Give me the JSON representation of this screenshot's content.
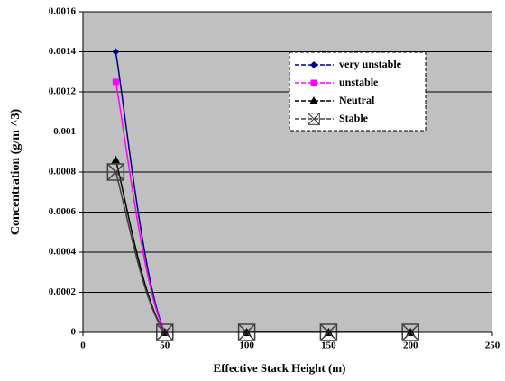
{
  "chart_data": {
    "type": "line",
    "smooth": true,
    "x_label": "Effective Stack Height (m)",
    "y_label": "Concentration (g/m ^3)",
    "x": [
      20,
      50,
      100,
      150,
      200
    ],
    "series": [
      {
        "name": "very unstable",
        "color": "#000080",
        "marker": "diamond",
        "values": [
          0.0014,
          0,
          0,
          0,
          0
        ]
      },
      {
        "name": "unstable",
        "color": "#ff00ff",
        "marker": "square",
        "values": [
          0.00125,
          0,
          0,
          0,
          0
        ]
      },
      {
        "name": "Neutral",
        "color": "#000000",
        "marker": "triangle",
        "values": [
          0.00086,
          0,
          0,
          0,
          0
        ]
      },
      {
        "name": "Stable",
        "color": "#404040",
        "marker": "box-x",
        "values": [
          0.0008,
          0,
          0,
          0,
          0
        ]
      }
    ],
    "xlim": [
      0,
      250
    ],
    "xticks": [
      0,
      50,
      100,
      150,
      200,
      250
    ],
    "ylim": [
      0,
      0.0016
    ],
    "yticks": [
      0,
      0.0002,
      0.0004,
      0.0006,
      0.0008,
      0.001,
      0.0012,
      0.0014,
      0.0016
    ],
    "grid": true,
    "plot_background": "#c0c0c0"
  }
}
